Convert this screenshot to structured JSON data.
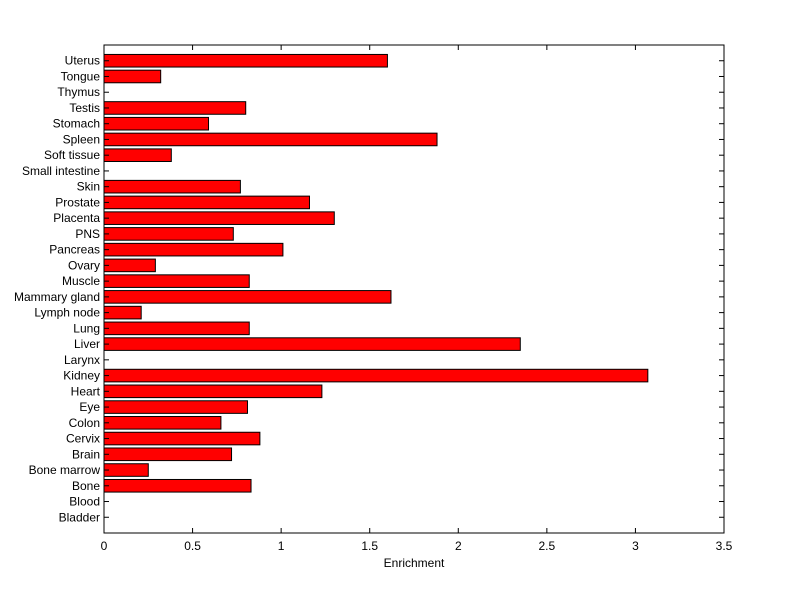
{
  "chart_data": {
    "type": "bar",
    "orientation": "horizontal",
    "xlabel": "Enrichment",
    "ylabel": "",
    "title": "",
    "xlim": [
      0,
      3.5
    ],
    "xticks": [
      "0",
      "0.5",
      "1",
      "1.5",
      "2",
      "2.5",
      "3",
      "3.5"
    ],
    "grid": false,
    "bar_color": "#ff0000",
    "bar_edge_color": "#000000",
    "categories": [
      "Bladder",
      "Blood",
      "Bone",
      "Bone marrow",
      "Brain",
      "Cervix",
      "Colon",
      "Eye",
      "Heart",
      "Kidney",
      "Larynx",
      "Liver",
      "Lung",
      "Lymph node",
      "Mammary gland",
      "Muscle",
      "Ovary",
      "Pancreas",
      "PNS",
      "Placenta",
      "Prostate",
      "Skin",
      "Small intestine",
      "Soft tissue",
      "Spleen",
      "Stomach",
      "Testis",
      "Thymus",
      "Tongue",
      "Uterus"
    ],
    "values": [
      0,
      0,
      0.83,
      0.25,
      0.72,
      0.88,
      0.66,
      0.81,
      1.23,
      3.07,
      0,
      2.35,
      0.82,
      0.21,
      1.62,
      0.82,
      0.29,
      1.01,
      0.73,
      1.3,
      1.16,
      0.77,
      0,
      0.38,
      1.88,
      0.59,
      0.8,
      0,
      0.32,
      1.6
    ]
  }
}
